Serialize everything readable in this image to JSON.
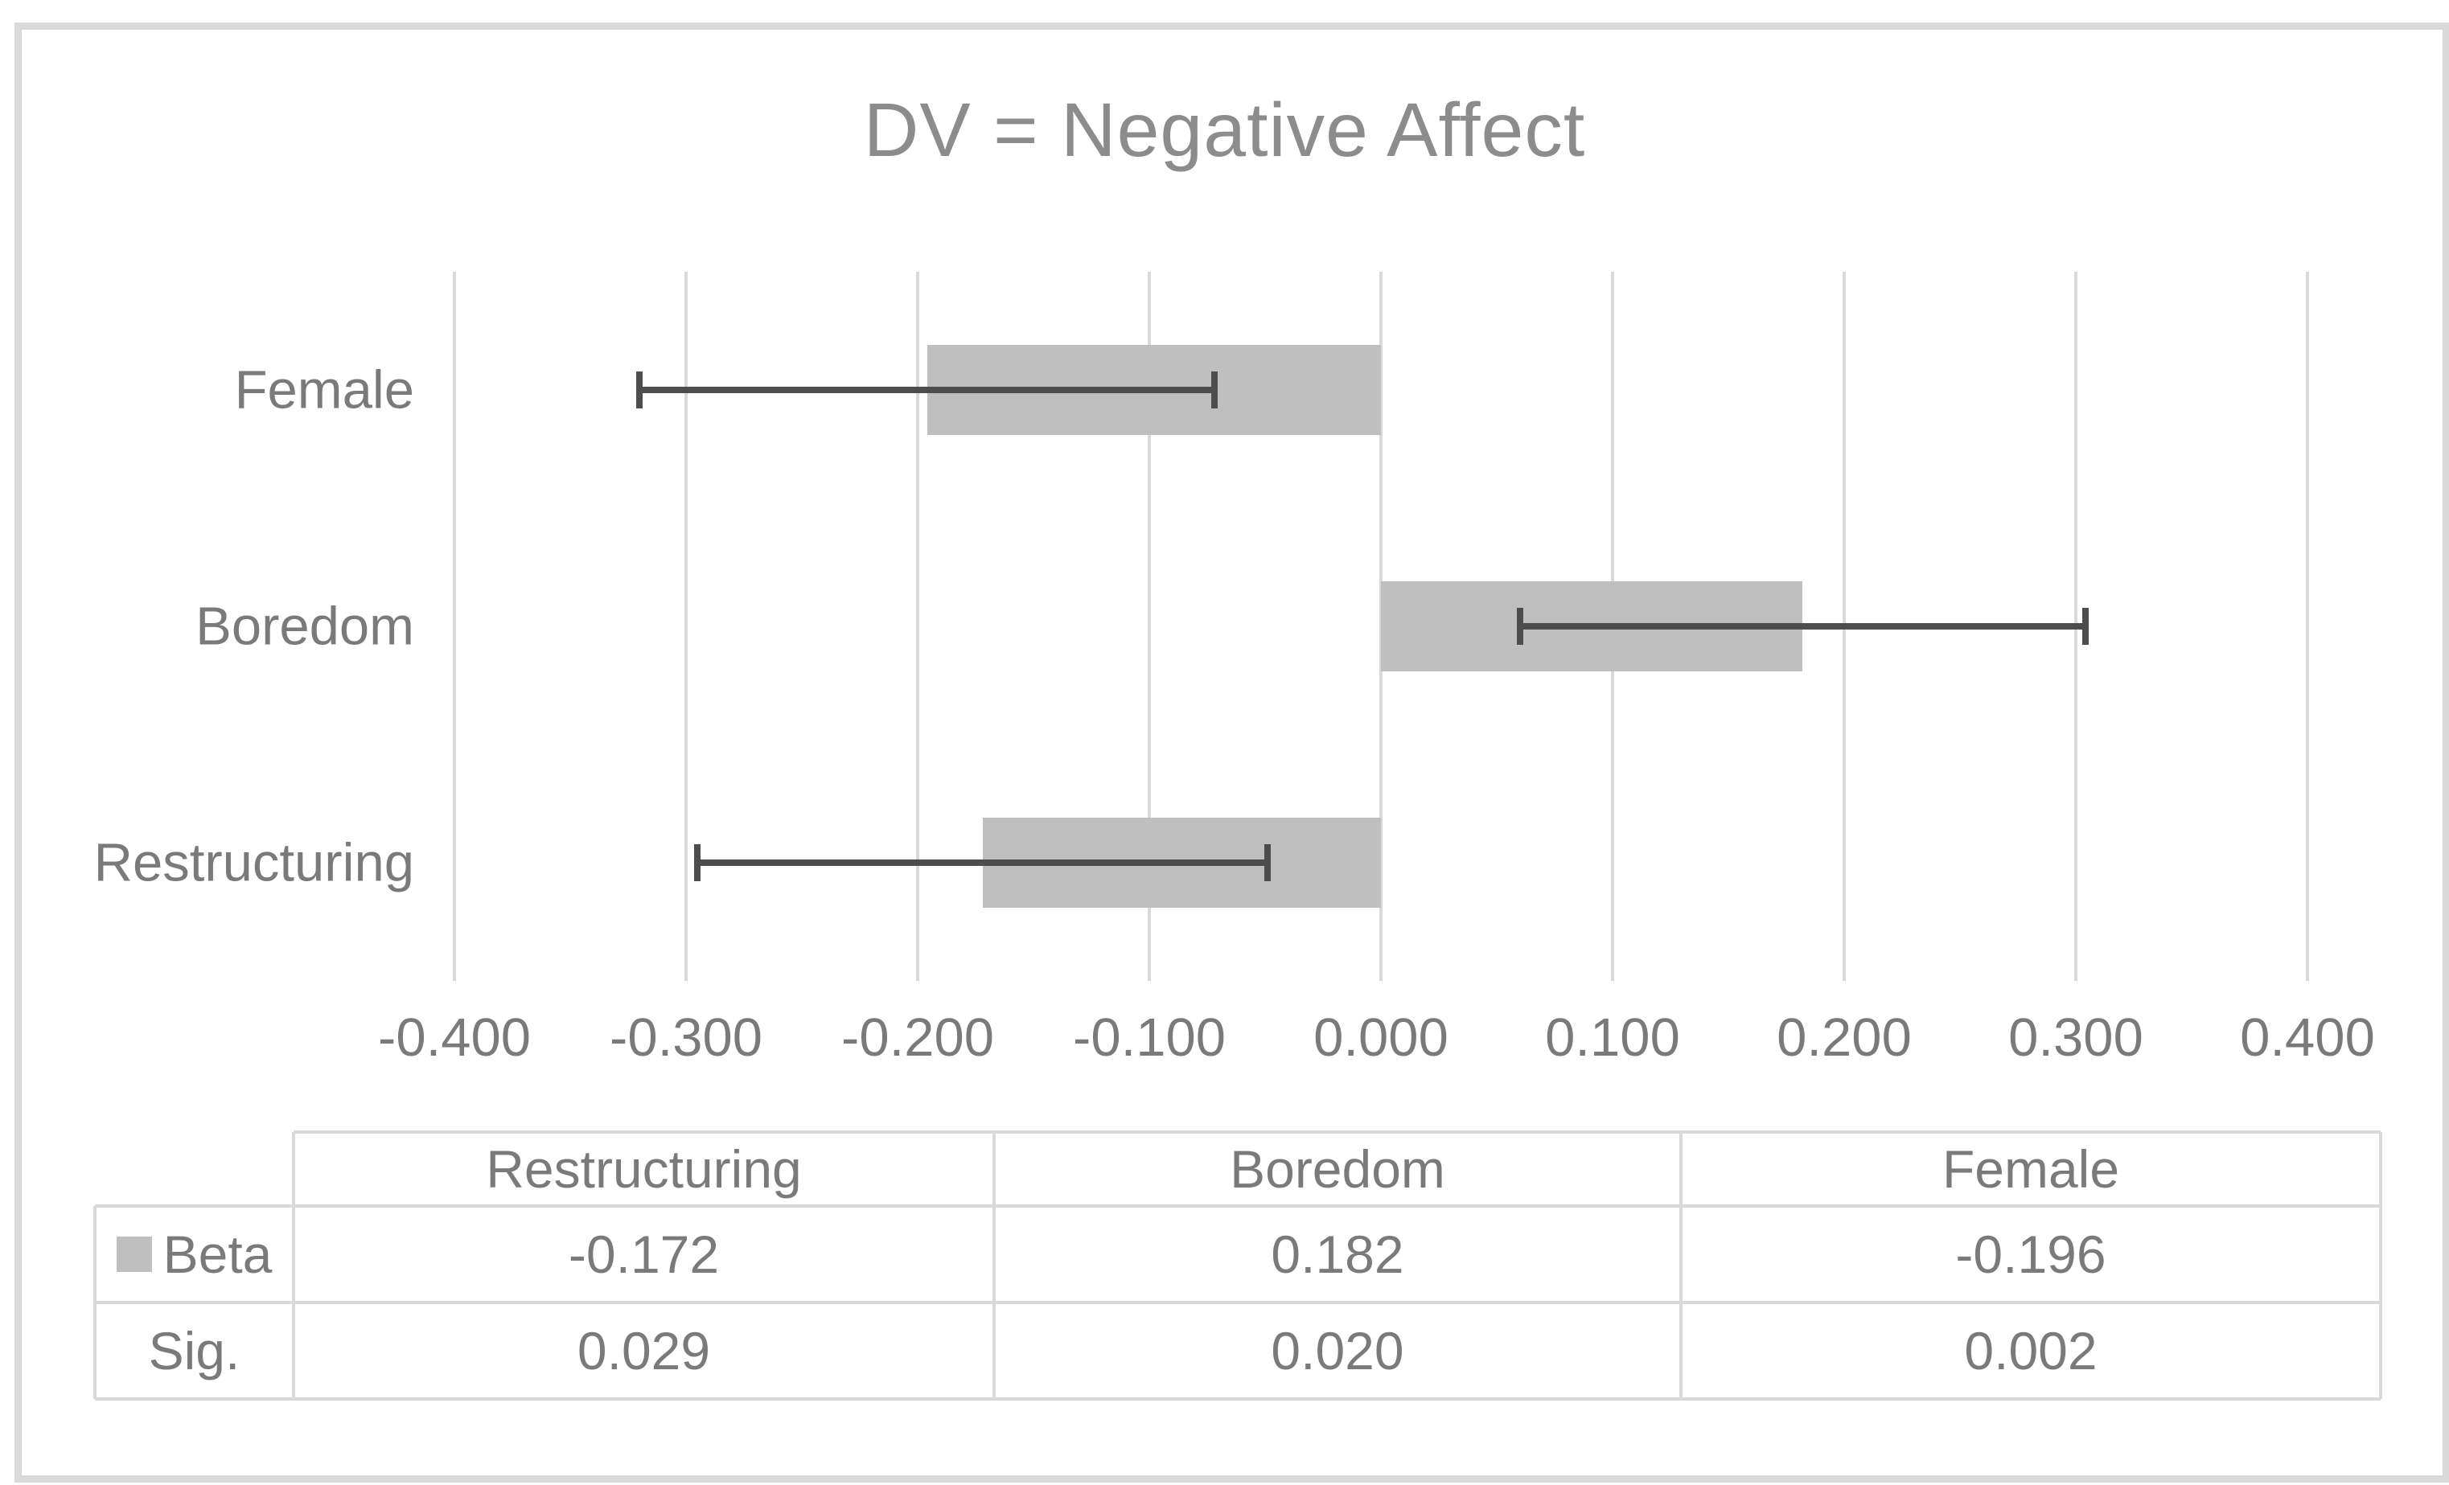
{
  "chart_data": {
    "type": "bar",
    "orientation": "horizontal",
    "title": "DV = Negative Affect",
    "categories": [
      "Female",
      "Boredom",
      "Restructuring"
    ],
    "series": [
      {
        "name": "Beta",
        "values": [
          -0.196,
          0.182,
          -0.172
        ],
        "error_low": [
          -0.32,
          0.06,
          -0.295
        ],
        "error_high": [
          -0.072,
          0.304,
          -0.049
        ]
      }
    ],
    "xlim": [
      -0.4,
      0.4
    ],
    "x_ticks": [
      -0.4,
      -0.3,
      -0.2,
      -0.1,
      0.0,
      0.1,
      0.2,
      0.3,
      0.4
    ],
    "x_tick_labels": [
      "-0.400",
      "-0.300",
      "-0.200",
      "-0.100",
      "0.000",
      "0.100",
      "0.200",
      "0.300",
      "0.400"
    ],
    "grid": "vertical-gridlines-on",
    "legend_position": "table-row-header",
    "colors": {
      "bar_fill": "#bfbfbf",
      "error_bar": "#4d4d4d",
      "gridline": "#d9d9d9",
      "frame_border": "#d9d9d9",
      "title_text": "#8c8c8c",
      "label_text": "#7a7a7a"
    }
  },
  "table": {
    "col_headers": [
      "Restructuring",
      "Boredom",
      "Female"
    ],
    "rows": [
      {
        "label": "Beta",
        "legend_key": true,
        "values": [
          "-0.172",
          "0.182",
          "-0.196"
        ]
      },
      {
        "label": "Sig.",
        "legend_key": false,
        "values": [
          "0.029",
          "0.020",
          "0.002"
        ]
      }
    ]
  }
}
